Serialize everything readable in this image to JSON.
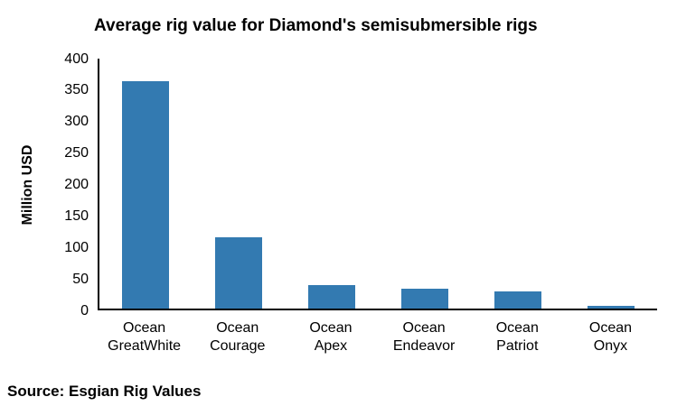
{
  "source": "Source: Esgian Rig Values",
  "colors": {
    "bar": "#337AB1",
    "axis": "#000000",
    "text": "#000000",
    "background": "#FFFFFF"
  },
  "chart_data": {
    "type": "bar",
    "title": "Average rig value for Diamond's semisubmersible rigs",
    "categories": [
      "Ocean GreatWhite",
      "Ocean Courage",
      "Ocean Apex",
      "Ocean Endeavor",
      "Ocean Patriot",
      "Ocean Onyx"
    ],
    "values": [
      362,
      114,
      38,
      32,
      28,
      5
    ],
    "xlabel": "",
    "ylabel": "Million USD",
    "ylim": [
      0,
      400
    ],
    "ytick_step": 50,
    "yticks": [
      0,
      50,
      100,
      150,
      200,
      250,
      300,
      350,
      400
    ],
    "grid": false,
    "legend": "none",
    "bar_color": "#337AB1"
  }
}
